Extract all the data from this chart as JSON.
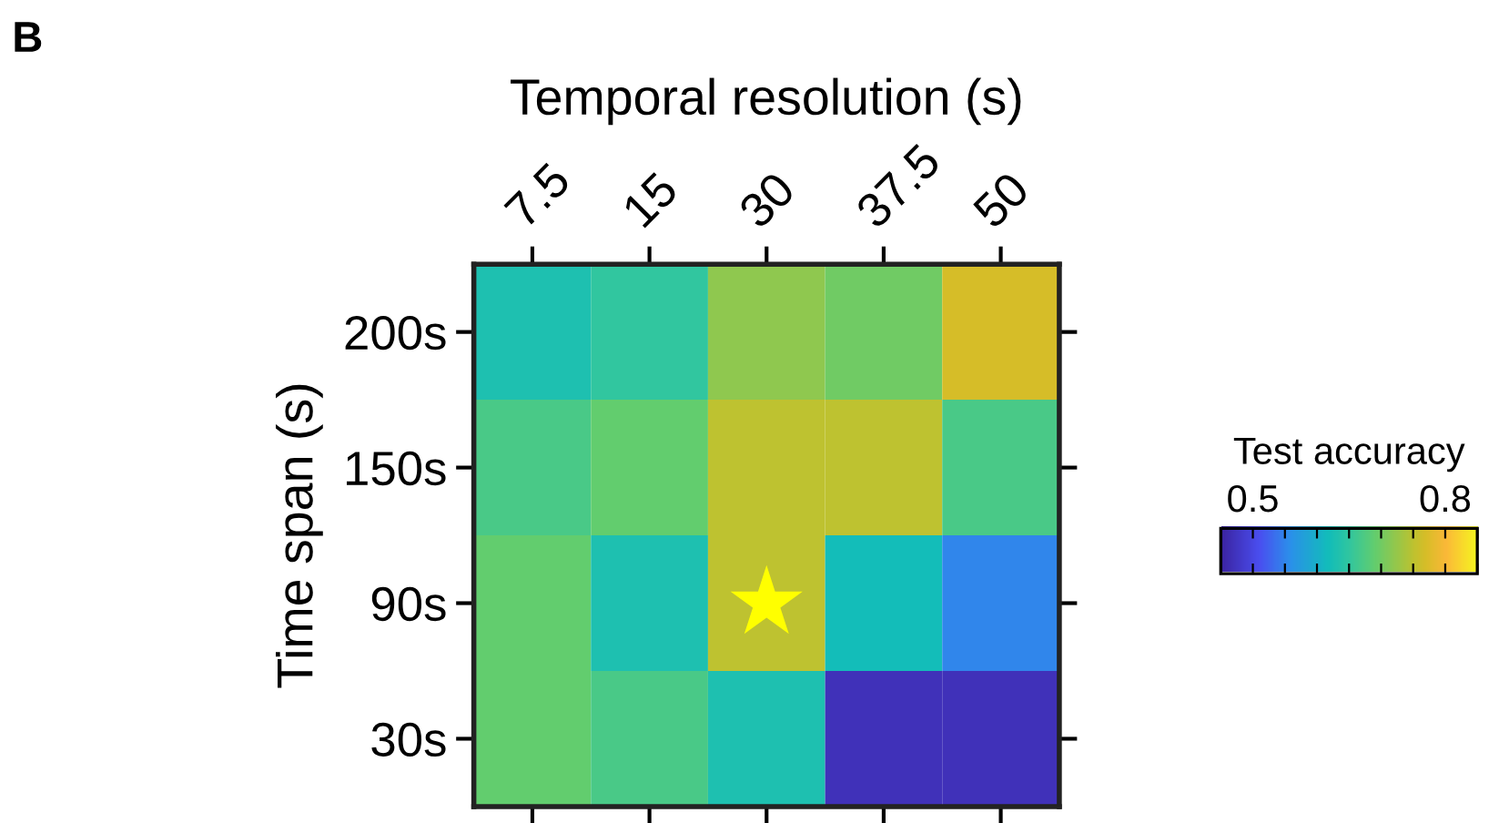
{
  "chart_data": {
    "type": "heatmap",
    "xlabel": "Temporal resolution (s)",
    "ylabel": "Time span (s)",
    "clabel": "Test accuracy",
    "categories": [
      "7.5",
      "15",
      "30",
      "37.5",
      "50"
    ],
    "y_categories": [
      "200s",
      "150s",
      "90s",
      "30s"
    ],
    "cells": [
      [
        0.63,
        0.65,
        0.72,
        0.7,
        0.77
      ],
      [
        0.67,
        0.69,
        0.75,
        0.75,
        0.67
      ],
      [
        0.69,
        0.63,
        0.75,
        0.62,
        0.55
      ],
      [
        0.69,
        0.67,
        0.63,
        0.47,
        0.47
      ]
    ],
    "clim": [
      0.45,
      0.85
    ],
    "cticks": [
      {
        "value": 0.45,
        "label": null
      },
      0.5,
      {
        "value": 0.55,
        "label": null
      },
      {
        "value": 0.6,
        "label": null
      },
      {
        "value": 0.65,
        "label": null
      },
      {
        "value": 0.7,
        "label": null
      },
      {
        "value": 0.75,
        "label": null
      },
      0.8,
      {
        "value": 0.85,
        "label": null
      }
    ],
    "annotations": [
      "B"
    ]
  }
}
